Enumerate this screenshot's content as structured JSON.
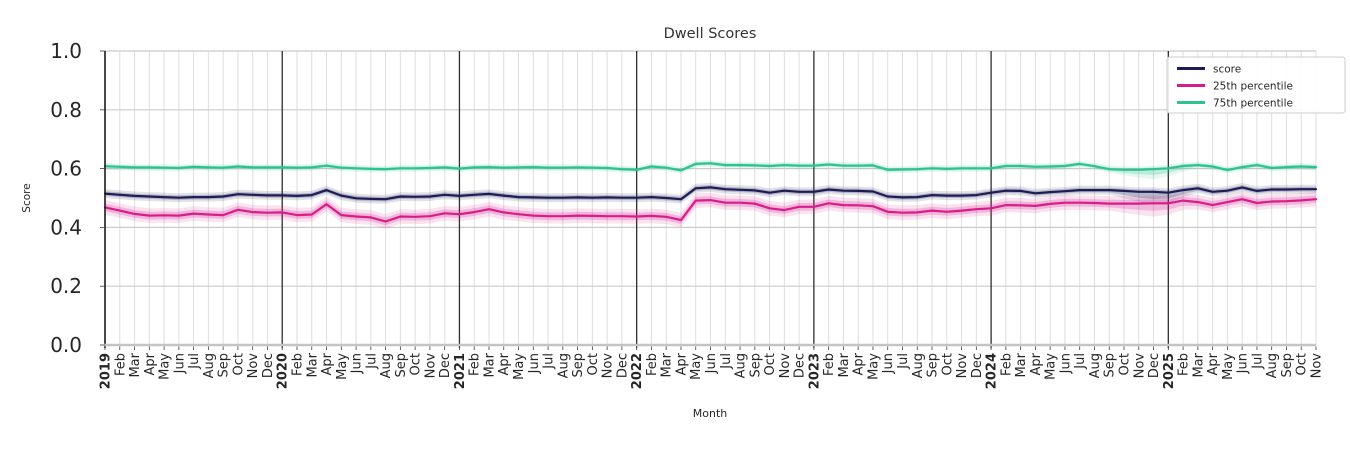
{
  "chart_data": {
    "type": "line",
    "title": "Dwell Scores",
    "xlabel": "Month",
    "ylabel": "Score",
    "ylim": [
      0.0,
      1.0
    ],
    "yticks": [
      0.0,
      0.2,
      0.4,
      0.6,
      0.8,
      1.0
    ],
    "ytick_labels": [
      "0.0",
      "0.2",
      "0.4",
      "0.6",
      "0.8",
      "1.0"
    ],
    "grid": true,
    "legend_position": "upper right",
    "x_labels": [
      "2019",
      "Feb",
      "Mar",
      "Apr",
      "May",
      "Jun",
      "Jul",
      "Aug",
      "Sep",
      "Oct",
      "Nov",
      "Dec",
      "2020",
      "Feb",
      "Mar",
      "Apr",
      "May",
      "Jun",
      "Jul",
      "Aug",
      "Sep",
      "Oct",
      "Nov",
      "Dec",
      "2021",
      "Feb",
      "Mar",
      "Apr",
      "May",
      "Jun",
      "Jul",
      "Aug",
      "Sep",
      "Oct",
      "Nov",
      "Dec",
      "2022",
      "Feb",
      "Mar",
      "Apr",
      "May",
      "Jun",
      "Jul",
      "Aug",
      "Sep",
      "Oct",
      "Nov",
      "Dec",
      "2023",
      "Feb",
      "Mar",
      "Apr",
      "May",
      "Jun",
      "Jul",
      "Aug",
      "Sep",
      "Oct",
      "Nov",
      "Dec",
      "2024",
      "Feb",
      "Mar",
      "Apr",
      "May",
      "Jun",
      "Jul",
      "Aug",
      "Sep",
      "Oct",
      "Nov",
      "Dec",
      "2025",
      "Feb",
      "Mar",
      "Apr",
      "May",
      "Jun",
      "Jul",
      "Aug",
      "Sep",
      "Oct",
      "Nov"
    ],
    "year_line_indices": [
      12,
      24,
      36,
      48,
      60,
      72
    ],
    "ci_wide_region": {
      "from": 68,
      "peak": 71,
      "to": 74
    },
    "series": [
      {
        "name": "score",
        "color": "#1d1d55",
        "ci_halfwidth": 0.008,
        "ci_extra_below": 0.025,
        "values": [
          0.515,
          0.511,
          0.507,
          0.505,
          0.503,
          0.501,
          0.503,
          0.503,
          0.505,
          0.513,
          0.511,
          0.509,
          0.509,
          0.507,
          0.51,
          0.527,
          0.508,
          0.499,
          0.497,
          0.496,
          0.505,
          0.504,
          0.505,
          0.511,
          0.507,
          0.511,
          0.514,
          0.508,
          0.503,
          0.502,
          0.501,
          0.501,
          0.502,
          0.501,
          0.502,
          0.501,
          0.501,
          0.503,
          0.5,
          0.496,
          0.533,
          0.536,
          0.53,
          0.528,
          0.526,
          0.518,
          0.525,
          0.521,
          0.521,
          0.529,
          0.525,
          0.524,
          0.522,
          0.505,
          0.502,
          0.503,
          0.51,
          0.508,
          0.508,
          0.51,
          0.518,
          0.525,
          0.524,
          0.516,
          0.52,
          0.523,
          0.527,
          0.527,
          0.527,
          0.524,
          0.521,
          0.521,
          0.518,
          0.527,
          0.533,
          0.521,
          0.525,
          0.536,
          0.524,
          0.529,
          0.529,
          0.53,
          0.53
        ]
      },
      {
        "name": "25th percentile",
        "color": "#d81c8c",
        "ci_halfwidth": 0.013,
        "ci_extra_below": 0.018,
        "values": [
          0.468,
          0.457,
          0.446,
          0.44,
          0.441,
          0.44,
          0.447,
          0.444,
          0.442,
          0.46,
          0.452,
          0.45,
          0.451,
          0.442,
          0.444,
          0.479,
          0.442,
          0.437,
          0.434,
          0.42,
          0.437,
          0.436,
          0.438,
          0.448,
          0.445,
          0.452,
          0.462,
          0.451,
          0.445,
          0.44,
          0.438,
          0.438,
          0.44,
          0.439,
          0.438,
          0.438,
          0.437,
          0.439,
          0.436,
          0.425,
          0.491,
          0.493,
          0.484,
          0.484,
          0.481,
          0.465,
          0.459,
          0.47,
          0.47,
          0.482,
          0.476,
          0.475,
          0.472,
          0.453,
          0.45,
          0.451,
          0.457,
          0.453,
          0.457,
          0.462,
          0.465,
          0.476,
          0.475,
          0.473,
          0.48,
          0.484,
          0.484,
          0.483,
          0.481,
          0.481,
          0.481,
          0.482,
          0.482,
          0.491,
          0.486,
          0.476,
          0.486,
          0.496,
          0.483,
          0.488,
          0.489,
          0.492,
          0.496
        ]
      },
      {
        "name": "75th percentile",
        "color": "#2cc391",
        "ci_halfwidth": 0.006,
        "ci_extra_below": 0.02,
        "values": [
          0.608,
          0.606,
          0.604,
          0.604,
          0.603,
          0.602,
          0.606,
          0.604,
          0.603,
          0.607,
          0.604,
          0.604,
          0.604,
          0.603,
          0.604,
          0.61,
          0.603,
          0.601,
          0.599,
          0.598,
          0.601,
          0.601,
          0.602,
          0.604,
          0.6,
          0.604,
          0.605,
          0.603,
          0.604,
          0.605,
          0.603,
          0.603,
          0.604,
          0.603,
          0.602,
          0.598,
          0.596,
          0.607,
          0.603,
          0.594,
          0.616,
          0.618,
          0.612,
          0.612,
          0.611,
          0.609,
          0.612,
          0.61,
          0.61,
          0.614,
          0.61,
          0.61,
          0.611,
          0.596,
          0.597,
          0.598,
          0.601,
          0.599,
          0.601,
          0.601,
          0.601,
          0.609,
          0.609,
          0.606,
          0.607,
          0.609,
          0.616,
          0.608,
          0.598,
          0.596,
          0.596,
          0.598,
          0.601,
          0.609,
          0.612,
          0.607,
          0.595,
          0.605,
          0.612,
          0.602,
          0.605,
          0.607,
          0.605
        ]
      }
    ]
  },
  "colors": {
    "grid_vertical": "#dedede",
    "grid_horizontal": "#cbcbcb",
    "year_line": "#2f2f2f",
    "left_spine": "#1a1a1a",
    "bottom_spine": "#c4c4c4",
    "tick_text": "#262626",
    "title_text": "#333333",
    "legend_border": "#cccccc"
  }
}
